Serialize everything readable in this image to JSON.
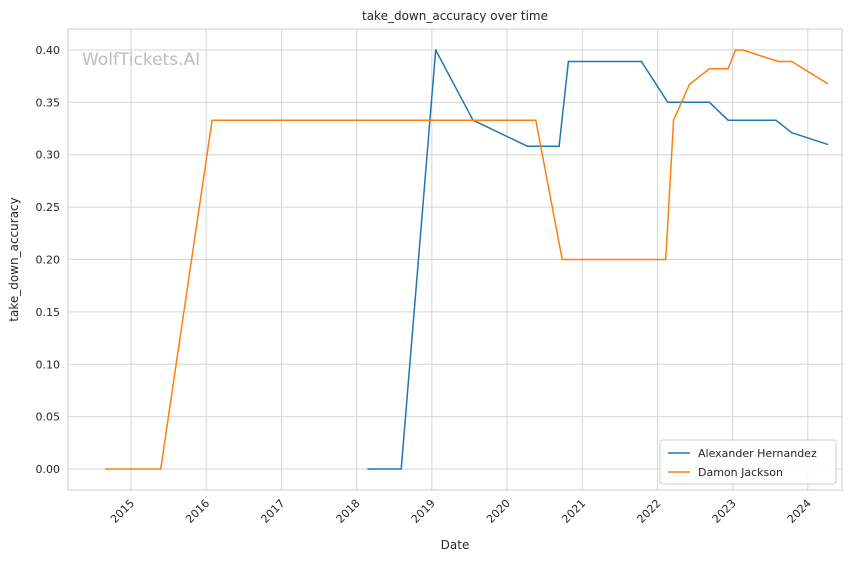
{
  "watermark": "WolfTickets.AI",
  "chart_data": {
    "type": "line",
    "title": "take_down_accuracy over time",
    "xlabel": "Date",
    "ylabel": "take_down_accuracy",
    "x_ticks": [
      "2015",
      "2016",
      "2017",
      "2018",
      "2019",
      "2020",
      "2021",
      "2022",
      "2023",
      "2024"
    ],
    "y_ticks": [
      "0.00",
      "0.05",
      "0.10",
      "0.15",
      "0.20",
      "0.25",
      "0.30",
      "0.35",
      "0.40"
    ],
    "xlim": [
      "2014-03-01",
      "2024-06-15"
    ],
    "ylim": [
      -0.02,
      0.42
    ],
    "grid": true,
    "legend_position": "lower-right",
    "series": [
      {
        "name": "Alexander Hernandez",
        "color": "#1f77b4",
        "points": [
          [
            "2018-02-25",
            0.0
          ],
          [
            "2018-08-05",
            0.0
          ],
          [
            "2019-01-20",
            0.4
          ],
          [
            "2019-07-20",
            0.333
          ],
          [
            "2020-04-10",
            0.308
          ],
          [
            "2020-09-10",
            0.308
          ],
          [
            "2020-10-25",
            0.389
          ],
          [
            "2021-10-15",
            0.389
          ],
          [
            "2022-02-20",
            0.35
          ],
          [
            "2022-09-10",
            0.35
          ],
          [
            "2022-12-10",
            0.333
          ],
          [
            "2023-07-30",
            0.333
          ],
          [
            "2023-10-15",
            0.321
          ],
          [
            "2024-04-05",
            0.31
          ]
        ]
      },
      {
        "name": "Damon Jackson",
        "color": "#ff7f0e",
        "points": [
          [
            "2014-09-01",
            0.0
          ],
          [
            "2015-05-25",
            0.0
          ],
          [
            "2016-01-30",
            0.333
          ],
          [
            "2020-05-20",
            0.333
          ],
          [
            "2020-09-25",
            0.2
          ],
          [
            "2022-02-10",
            0.2
          ],
          [
            "2022-03-20",
            0.333
          ],
          [
            "2022-06-05",
            0.367
          ],
          [
            "2022-09-10",
            0.382
          ],
          [
            "2022-12-10",
            0.382
          ],
          [
            "2023-01-15",
            0.4
          ],
          [
            "2023-02-20",
            0.4
          ],
          [
            "2023-08-10",
            0.389
          ],
          [
            "2023-10-15",
            0.389
          ],
          [
            "2024-04-05",
            0.368
          ]
        ]
      }
    ]
  }
}
